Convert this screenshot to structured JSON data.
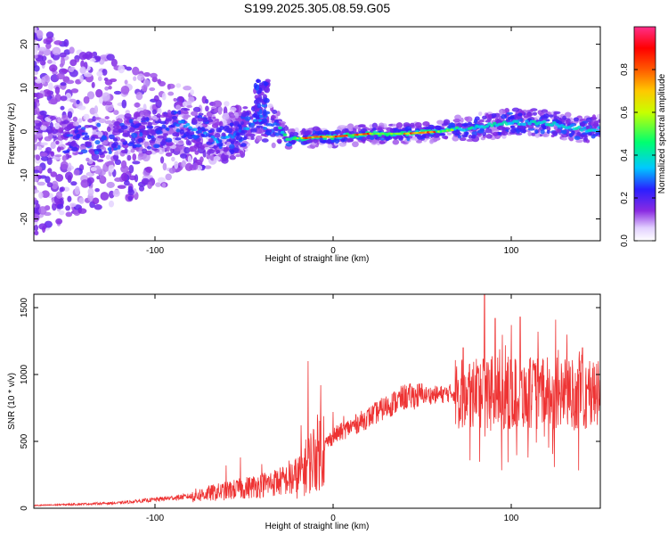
{
  "title": "S199.2025.305.08.59.G05",
  "chart_data": [
    {
      "type": "heatmap",
      "name": "spectrogram",
      "xlabel": "Height of straight line (km)",
      "ylabel": "Frequency (Hz)",
      "xlim": [
        -168,
        150
      ],
      "ylim": [
        -25,
        24
      ],
      "xticks": [
        -100,
        0,
        100
      ],
      "yticks": [
        -20,
        -10,
        0,
        10,
        20
      ],
      "ridge": {
        "x": [
          -168,
          -140,
          -120,
          -100,
          -85,
          -75,
          -65,
          -55,
          -48,
          -42,
          -38,
          -35,
          -30,
          -25,
          -20,
          -15,
          -10,
          0,
          20,
          40,
          60,
          80,
          100,
          120,
          140,
          150
        ],
        "freq": [
          -1,
          -2,
          -1.5,
          0,
          2,
          0,
          -2,
          -1,
          1,
          3,
          1,
          2,
          1,
          -2,
          -1.5,
          -1.5,
          -1.2,
          -1.2,
          -0.5,
          -0.5,
          0,
          1,
          2,
          2,
          0.5,
          0.5
        ]
      },
      "colorbar": {
        "label": "Normalized spectral amplitude",
        "ticks": [
          "0.0",
          "0.2",
          "0.4",
          "0.6",
          "0.8"
        ],
        "range": [
          0,
          1
        ]
      }
    },
    {
      "type": "line",
      "name": "snr",
      "xlabel": "Height of straight line (km)",
      "ylabel": "SNR (10 * v/v)",
      "xlim": [
        -168,
        150
      ],
      "ylim": [
        0,
        1600
      ],
      "xticks": [
        -100,
        0,
        100
      ],
      "yticks": [
        0,
        500,
        1000,
        1500
      ],
      "color": "#ee3333",
      "trend": {
        "x": [
          -168,
          -120,
          -80,
          -50,
          -30,
          -20,
          -10,
          0,
          10,
          20,
          30,
          40,
          50,
          60,
          65,
          70,
          80,
          90,
          100,
          120,
          150
        ],
        "y": [
          20,
          40,
          90,
          150,
          200,
          230,
          400,
          540,
          610,
          680,
          760,
          830,
          845,
          850,
          860,
          870,
          880,
          860,
          860,
          855,
          850
        ]
      },
      "peaks": [
        {
          "x": -60,
          "y": 320
        },
        {
          "x": -52,
          "y": 380
        },
        {
          "x": -40,
          "y": 330
        },
        {
          "x": -32,
          "y": 280
        },
        {
          "x": -18,
          "y": 620
        },
        {
          "x": -14,
          "y": 1100
        },
        {
          "x": -7,
          "y": 920
        },
        {
          "x": 0,
          "y": 720
        },
        {
          "x": 6,
          "y": 690
        },
        {
          "x": 73,
          "y": 1200
        },
        {
          "x": 85,
          "y": 1600
        },
        {
          "x": 91,
          "y": 1420
        },
        {
          "x": 100,
          "y": 1370
        },
        {
          "x": 105,
          "y": 1430
        },
        {
          "x": 115,
          "y": 1320
        },
        {
          "x": 125,
          "y": 1410
        },
        {
          "x": 140,
          "y": 1200
        },
        {
          "x": 148,
          "y": 1080
        }
      ]
    }
  ]
}
